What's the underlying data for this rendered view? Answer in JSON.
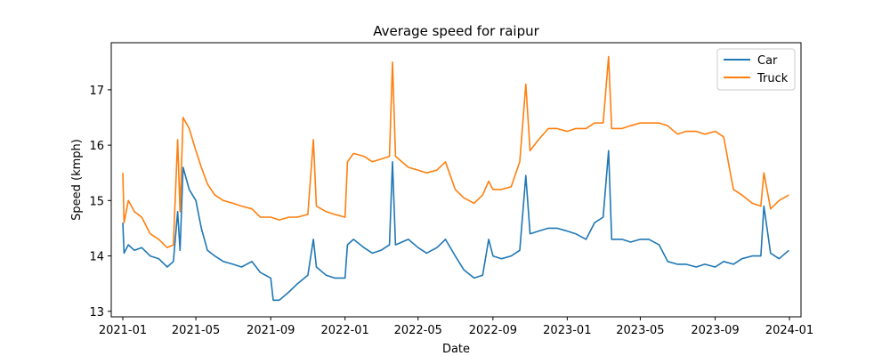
{
  "chart_data": {
    "type": "line",
    "title": "Average speed for raipur",
    "xlabel": "Date",
    "ylabel": "Speed (kmph)",
    "x_range": [
      "2020-12-13",
      "2024-01-20"
    ],
    "ylim": [
      12.9,
      17.85
    ],
    "y_ticks": [
      13,
      14,
      15,
      16,
      17
    ],
    "x_ticks": [
      "2021-01",
      "2021-05",
      "2021-09",
      "2022-01",
      "2022-05",
      "2022-09",
      "2023-01",
      "2023-05",
      "2023-09",
      "2024-01"
    ],
    "grid": false,
    "legend_position": "top-right",
    "series": [
      {
        "name": "Car",
        "color": "#1f77b4",
        "points": [
          [
            "2021-01-01",
            14.6
          ],
          [
            "2021-01-03",
            14.05
          ],
          [
            "2021-01-10",
            14.2
          ],
          [
            "2021-01-20",
            14.1
          ],
          [
            "2021-02-01",
            14.15
          ],
          [
            "2021-02-15",
            14.0
          ],
          [
            "2021-03-01",
            13.95
          ],
          [
            "2021-03-15",
            13.8
          ],
          [
            "2021-03-25",
            13.9
          ],
          [
            "2021-04-01",
            14.8
          ],
          [
            "2021-04-05",
            14.1
          ],
          [
            "2021-04-10",
            15.6
          ],
          [
            "2021-04-20",
            15.2
          ],
          [
            "2021-05-01",
            15.0
          ],
          [
            "2021-05-10",
            14.5
          ],
          [
            "2021-05-20",
            14.1
          ],
          [
            "2021-06-01",
            14.0
          ],
          [
            "2021-06-15",
            13.9
          ],
          [
            "2021-07-01",
            13.85
          ],
          [
            "2021-07-15",
            13.8
          ],
          [
            "2021-08-01",
            13.9
          ],
          [
            "2021-08-15",
            13.7
          ],
          [
            "2021-09-01",
            13.6
          ],
          [
            "2021-09-05",
            13.2
          ],
          [
            "2021-09-15",
            13.2
          ],
          [
            "2021-10-01",
            13.35
          ],
          [
            "2021-10-15",
            13.5
          ],
          [
            "2021-11-01",
            13.65
          ],
          [
            "2021-11-10",
            14.3
          ],
          [
            "2021-11-15",
            13.8
          ],
          [
            "2021-12-01",
            13.65
          ],
          [
            "2021-12-15",
            13.6
          ],
          [
            "2022-01-01",
            13.6
          ],
          [
            "2022-01-05",
            14.2
          ],
          [
            "2022-01-15",
            14.3
          ],
          [
            "2022-02-01",
            14.15
          ],
          [
            "2022-02-15",
            14.05
          ],
          [
            "2022-03-01",
            14.1
          ],
          [
            "2022-03-15",
            14.2
          ],
          [
            "2022-03-20",
            15.7
          ],
          [
            "2022-03-25",
            14.2
          ],
          [
            "2022-04-15",
            14.3
          ],
          [
            "2022-05-01",
            14.15
          ],
          [
            "2022-05-15",
            14.05
          ],
          [
            "2022-06-01",
            14.15
          ],
          [
            "2022-06-15",
            14.3
          ],
          [
            "2022-07-01",
            14.0
          ],
          [
            "2022-07-15",
            13.75
          ],
          [
            "2022-08-01",
            13.6
          ],
          [
            "2022-08-15",
            13.65
          ],
          [
            "2022-08-25",
            14.3
          ],
          [
            "2022-09-01",
            14.0
          ],
          [
            "2022-09-15",
            13.95
          ],
          [
            "2022-10-01",
            14.0
          ],
          [
            "2022-10-15",
            14.1
          ],
          [
            "2022-10-25",
            15.45
          ],
          [
            "2022-11-01",
            14.4
          ],
          [
            "2022-11-15",
            14.45
          ],
          [
            "2022-12-01",
            14.5
          ],
          [
            "2022-12-15",
            14.5
          ],
          [
            "2023-01-01",
            14.45
          ],
          [
            "2023-01-15",
            14.4
          ],
          [
            "2023-02-01",
            14.3
          ],
          [
            "2023-02-15",
            14.6
          ],
          [
            "2023-03-01",
            14.7
          ],
          [
            "2023-03-10",
            15.9
          ],
          [
            "2023-03-15",
            14.3
          ],
          [
            "2023-04-01",
            14.3
          ],
          [
            "2023-04-15",
            14.25
          ],
          [
            "2023-05-01",
            14.3
          ],
          [
            "2023-05-15",
            14.3
          ],
          [
            "2023-06-01",
            14.2
          ],
          [
            "2023-06-15",
            13.9
          ],
          [
            "2023-07-01",
            13.85
          ],
          [
            "2023-07-15",
            13.85
          ],
          [
            "2023-08-01",
            13.8
          ],
          [
            "2023-08-15",
            13.85
          ],
          [
            "2023-09-01",
            13.8
          ],
          [
            "2023-09-15",
            13.9
          ],
          [
            "2023-10-01",
            13.85
          ],
          [
            "2023-10-15",
            13.95
          ],
          [
            "2023-11-01",
            14.0
          ],
          [
            "2023-11-15",
            14.0
          ],
          [
            "2023-11-20",
            14.9
          ],
          [
            "2023-12-01",
            14.05
          ],
          [
            "2023-12-15",
            13.95
          ],
          [
            "2023-12-31",
            14.1
          ]
        ]
      },
      {
        "name": "Truck",
        "color": "#ff7f0e",
        "points": [
          [
            "2021-01-01",
            15.5
          ],
          [
            "2021-01-03",
            14.6
          ],
          [
            "2021-01-10",
            15.0
          ],
          [
            "2021-01-20",
            14.8
          ],
          [
            "2021-02-01",
            14.7
          ],
          [
            "2021-02-15",
            14.4
          ],
          [
            "2021-03-01",
            14.3
          ],
          [
            "2021-03-15",
            14.15
          ],
          [
            "2021-03-25",
            14.2
          ],
          [
            "2021-04-01",
            16.1
          ],
          [
            "2021-04-05",
            14.8
          ],
          [
            "2021-04-10",
            16.5
          ],
          [
            "2021-04-20",
            16.3
          ],
          [
            "2021-05-01",
            15.9
          ],
          [
            "2021-05-10",
            15.6
          ],
          [
            "2021-05-20",
            15.3
          ],
          [
            "2021-06-01",
            15.1
          ],
          [
            "2021-06-15",
            15.0
          ],
          [
            "2021-07-01",
            14.95
          ],
          [
            "2021-07-15",
            14.9
          ],
          [
            "2021-08-01",
            14.85
          ],
          [
            "2021-08-15",
            14.7
          ],
          [
            "2021-09-01",
            14.7
          ],
          [
            "2021-09-15",
            14.65
          ],
          [
            "2021-10-01",
            14.7
          ],
          [
            "2021-10-15",
            14.7
          ],
          [
            "2021-11-01",
            14.75
          ],
          [
            "2021-11-10",
            16.1
          ],
          [
            "2021-11-15",
            14.9
          ],
          [
            "2021-12-01",
            14.8
          ],
          [
            "2021-12-15",
            14.75
          ],
          [
            "2022-01-01",
            14.7
          ],
          [
            "2022-01-05",
            15.7
          ],
          [
            "2022-01-15",
            15.85
          ],
          [
            "2022-02-01",
            15.8
          ],
          [
            "2022-02-15",
            15.7
          ],
          [
            "2022-03-01",
            15.75
          ],
          [
            "2022-03-15",
            15.8
          ],
          [
            "2022-03-20",
            17.5
          ],
          [
            "2022-03-25",
            15.8
          ],
          [
            "2022-04-15",
            15.6
          ],
          [
            "2022-05-01",
            15.55
          ],
          [
            "2022-05-15",
            15.5
          ],
          [
            "2022-06-01",
            15.55
          ],
          [
            "2022-06-15",
            15.7
          ],
          [
            "2022-07-01",
            15.2
          ],
          [
            "2022-07-15",
            15.05
          ],
          [
            "2022-08-01",
            14.95
          ],
          [
            "2022-08-15",
            15.1
          ],
          [
            "2022-08-25",
            15.35
          ],
          [
            "2022-09-01",
            15.2
          ],
          [
            "2022-09-15",
            15.2
          ],
          [
            "2022-10-01",
            15.25
          ],
          [
            "2022-10-15",
            15.7
          ],
          [
            "2022-10-25",
            17.1
          ],
          [
            "2022-11-01",
            15.9
          ],
          [
            "2022-11-15",
            16.1
          ],
          [
            "2022-12-01",
            16.3
          ],
          [
            "2022-12-15",
            16.3
          ],
          [
            "2023-01-01",
            16.25
          ],
          [
            "2023-01-15",
            16.3
          ],
          [
            "2023-02-01",
            16.3
          ],
          [
            "2023-02-15",
            16.4
          ],
          [
            "2023-03-01",
            16.4
          ],
          [
            "2023-03-10",
            17.6
          ],
          [
            "2023-03-15",
            16.3
          ],
          [
            "2023-04-01",
            16.3
          ],
          [
            "2023-04-15",
            16.35
          ],
          [
            "2023-05-01",
            16.4
          ],
          [
            "2023-05-15",
            16.4
          ],
          [
            "2023-06-01",
            16.4
          ],
          [
            "2023-06-15",
            16.35
          ],
          [
            "2023-07-01",
            16.2
          ],
          [
            "2023-07-15",
            16.25
          ],
          [
            "2023-08-01",
            16.25
          ],
          [
            "2023-08-15",
            16.2
          ],
          [
            "2023-09-01",
            16.25
          ],
          [
            "2023-09-15",
            16.15
          ],
          [
            "2023-10-01",
            15.2
          ],
          [
            "2023-10-15",
            15.1
          ],
          [
            "2023-11-01",
            14.95
          ],
          [
            "2023-11-15",
            14.9
          ],
          [
            "2023-11-20",
            15.5
          ],
          [
            "2023-12-01",
            14.85
          ],
          [
            "2023-12-15",
            15.0
          ],
          [
            "2023-12-31",
            15.1
          ]
        ]
      }
    ]
  }
}
